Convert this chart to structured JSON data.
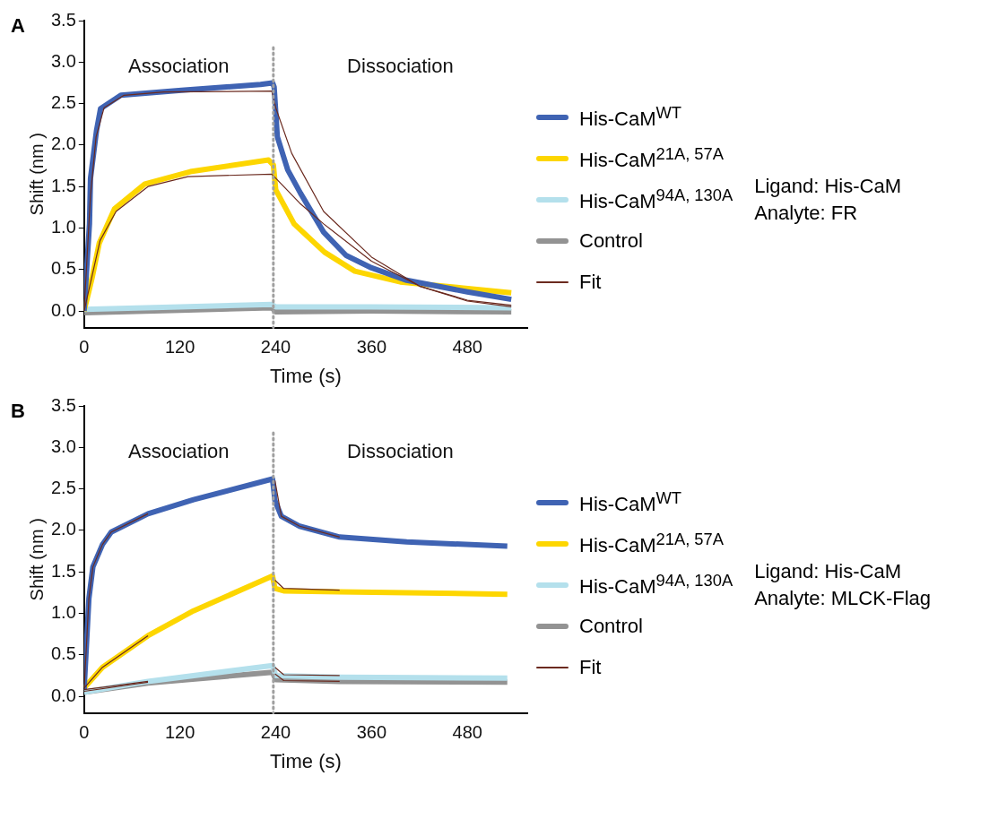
{
  "chart_data": [
    {
      "type": "line",
      "title": "A",
      "xlabel": "Time (s)",
      "ylabel": "Shift (nm )",
      "xlim": [
        0,
        555
      ],
      "ylim": [
        -0.2,
        3.5
      ],
      "xticks": [
        0,
        120,
        240,
        360,
        480
      ],
      "yticks": [
        {
          "value": 0,
          "label": "0.0"
        },
        0.5,
        {
          "value": 1,
          "label": "1.0"
        },
        1.5,
        {
          "value": 2,
          "label": "2.0"
        },
        2.5,
        {
          "value": 3,
          "label": "3.0"
        },
        3.5
      ],
      "grid": false,
      "legend": "right",
      "series": [
        {
          "name": "His-CaM$^{WT}$",
          "color": "#3f63b3",
          "x": [
            0,
            6.7,
            8,
            15.6,
            20.6,
            46,
            122,
            221,
            236,
            238,
            242,
            255,
            271,
            300,
            328,
            360,
            404,
            480,
            535
          ],
          "values": [
            0,
            1.05,
            1.6,
            2.18,
            2.44,
            2.6,
            2.66,
            2.73,
            2.75,
            2.7,
            2.1,
            1.7,
            1.42,
            0.95,
            0.67,
            0.52,
            0.37,
            0.23,
            0.14
          ]
        },
        {
          "name": "His-CaM$^{21A, 57A}$",
          "color": "#fdd600",
          "x": [
            0,
            10,
            19,
            38,
            76,
            133,
            231,
            237,
            240,
            263,
            301,
            339,
            396,
            472,
            535
          ],
          "values": [
            0,
            0.4,
            0.82,
            1.23,
            1.53,
            1.68,
            1.82,
            1.76,
            1.46,
            1.05,
            0.71,
            0.48,
            0.35,
            0.28,
            0.22
          ]
        },
        {
          "name": "His-CaM$^{94A, 130A}$",
          "color": "#b4e0ec",
          "x": [
            0,
            120,
            235,
            240,
            360,
            535
          ],
          "values": [
            0.02,
            0.05,
            0.08,
            0.05,
            0.05,
            0.04
          ]
        },
        {
          "name": "Control",
          "color": "#939393",
          "x": [
            0,
            120,
            235,
            240,
            360,
            535
          ],
          "values": [
            -0.02,
            0.01,
            0.04,
            -0.01,
            0.0,
            -0.01
          ]
        },
        {
          "name": "Fit",
          "color": "#6b2a1f",
          "line_style": "solid",
          "x": [
            0,
            8,
            15,
            25,
            50,
            100,
            235,
            240,
            260,
            300,
            360,
            420,
            480,
            535
          ],
          "values": [
            0,
            1.4,
            2.1,
            2.45,
            2.6,
            2.64,
            2.65,
            2.45,
            1.9,
            1.2,
            0.65,
            0.3,
            0.13,
            0.07
          ]
        },
        {
          "color": "#6b2a1f",
          "line_style": "solid",
          "x": [
            0,
            20,
            40,
            80,
            130,
            235,
            240,
            270,
            300,
            360,
            420,
            480,
            535
          ],
          "values": [
            0,
            0.85,
            1.2,
            1.5,
            1.62,
            1.65,
            1.6,
            1.3,
            1.05,
            0.6,
            0.3,
            0.12,
            0.05
          ]
        }
      ],
      "ref_lines": [
        {
          "axis": "x",
          "value": 237,
          "color": "#a0a0a0",
          "line_style": "dotted"
        }
      ],
      "annotations": [
        "Association",
        "Dissociation",
        "Ligand: His-CaM",
        "Analyte: FR"
      ]
    },
    {
      "type": "line",
      "title": "B",
      "xlabel": "Time (s)",
      "ylabel": "Shift (nm )",
      "xlim": [
        0,
        555
      ],
      "ylim": [
        -0.2,
        3.5
      ],
      "xticks": [
        0,
        120,
        240,
        360,
        480
      ],
      "yticks": [
        {
          "value": 0,
          "label": "0.0"
        },
        0.5,
        {
          "value": 1,
          "label": "1.0"
        },
        1.5,
        {
          "value": 2,
          "label": "2.0"
        },
        2.5,
        {
          "value": 3,
          "label": "3.0"
        },
        3.5
      ],
      "grid": false,
      "legend": "right",
      "series": [
        {
          "name": "His-CaM$^{WT}$",
          "color": "#3f63b3",
          "x": [
            0,
            6,
            11,
            23,
            34,
            80,
            137,
            236,
            239,
            247,
            270,
            320,
            404,
            530
          ],
          "values": [
            0.08,
            1.18,
            1.56,
            1.83,
            1.98,
            2.2,
            2.37,
            2.62,
            2.36,
            2.17,
            2.05,
            1.92,
            1.86,
            1.81
          ]
        },
        {
          "name": "His-CaM$^{21A, 57A}$",
          "color": "#fdd600",
          "x": [
            0,
            23,
            80,
            137,
            236,
            239,
            250,
            320,
            530
          ],
          "values": [
            0.1,
            0.35,
            0.73,
            1.03,
            1.45,
            1.3,
            1.27,
            1.26,
            1.23
          ]
        },
        {
          "name": "His-CaM$^{94A, 130A}$",
          "color": "#b4e0ec",
          "x": [
            0,
            80,
            236,
            240,
            320,
            530
          ],
          "values": [
            0.05,
            0.18,
            0.37,
            0.25,
            0.23,
            0.22
          ]
        },
        {
          "name": "Control",
          "color": "#939393",
          "x": [
            0,
            80,
            236,
            240,
            320,
            530
          ],
          "values": [
            0.05,
            0.16,
            0.29,
            0.2,
            0.18,
            0.17
          ]
        },
        {
          "name": "Fit",
          "color": "#6b2a1f",
          "line_style": "solid",
          "x": [
            0,
            6,
            11,
            23,
            34,
            80,
            160,
            239,
            247,
            270,
            320
          ],
          "values": [
            0.08,
            1.18,
            1.56,
            1.83,
            1.98,
            2.2,
            null,
            2.6,
            2.17,
            2.05,
            1.92
          ]
        },
        {
          "color": "#6b2a1f",
          "line_style": "solid",
          "x": [
            0,
            23,
            80,
            160,
            239,
            250,
            320
          ],
          "values": [
            0.1,
            0.35,
            0.73,
            null,
            1.4,
            1.3,
            1.28
          ]
        },
        {
          "color": "#6b2a1f",
          "line_style": "solid",
          "x": [
            0,
            80,
            160,
            239,
            250,
            320
          ],
          "values": [
            0.08,
            0.18,
            null,
            0.35,
            0.26,
            0.25
          ]
        },
        {
          "color": "#6b2a1f",
          "line_style": "solid",
          "x": [
            0,
            80,
            160,
            239,
            250,
            320
          ],
          "values": [
            0.06,
            0.17,
            null,
            0.27,
            0.19,
            0.18
          ]
        }
      ],
      "ref_lines": [
        {
          "axis": "x",
          "value": 237,
          "color": "#a0a0a0",
          "line_style": "dotted"
        }
      ],
      "annotations": [
        "Association",
        "Dissociation",
        "Ligand: His-CaM",
        "Analyte: MLCK-Flag"
      ]
    }
  ]
}
